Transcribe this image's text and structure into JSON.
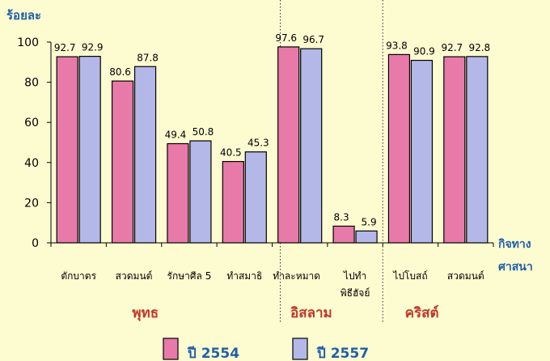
{
  "chart_data": {
    "type": "bar",
    "ylabel": "ร้อยละ",
    "xlabel_lines": [
      "กิจทาง",
      "ศาสนา"
    ],
    "ylim": [
      0,
      100
    ],
    "yticks": [
      0,
      20,
      40,
      60,
      80,
      100
    ],
    "categories": [
      {
        "lines": [
          "ตักบาตร"
        ]
      },
      {
        "lines": [
          "สวดมนต์"
        ]
      },
      {
        "lines": [
          "รักษาศีล 5"
        ]
      },
      {
        "lines": [
          "ทำสมาธิ"
        ]
      },
      {
        "lines": [
          "ทำละหมาด"
        ]
      },
      {
        "lines": [
          "ไปทำ",
          "พิธีฮัจย์"
        ]
      },
      {
        "lines": [
          "ไปโบสถ์"
        ]
      },
      {
        "lines": [
          "สวดมนต์"
        ]
      }
    ],
    "series": [
      {
        "name": "ปี 2554",
        "color": "#e87aaa",
        "values": [
          92.7,
          80.6,
          49.4,
          40.5,
          97.6,
          8.3,
          93.8,
          92.7
        ]
      },
      {
        "name": "ปี 2557",
        "color": "#b3b8e8",
        "values": [
          92.9,
          87.8,
          50.8,
          45.3,
          96.7,
          5.9,
          90.9,
          92.8
        ]
      }
    ],
    "value_labels": [
      [
        "92.7",
        "80.6",
        "49.4",
        "40.5",
        "97.6",
        "8.3",
        "93.8",
        "92.7"
      ],
      [
        "92.9",
        "87.8",
        "50.8",
        "45.3",
        "96.7",
        "5.9",
        "90.9",
        "92.8"
      ]
    ],
    "groups": [
      {
        "name": "พุทธ",
        "span": [
          0,
          3
        ]
      },
      {
        "name": "อิสลาม",
        "span": [
          4,
          5
        ]
      },
      {
        "name": "คริสต์",
        "span": [
          6,
          7
        ]
      }
    ],
    "legend_position": "bottom",
    "grid": false,
    "colors": {
      "axis_title": "#1f5fa8",
      "group_label": "#c0392b",
      "text": "#000000"
    }
  }
}
